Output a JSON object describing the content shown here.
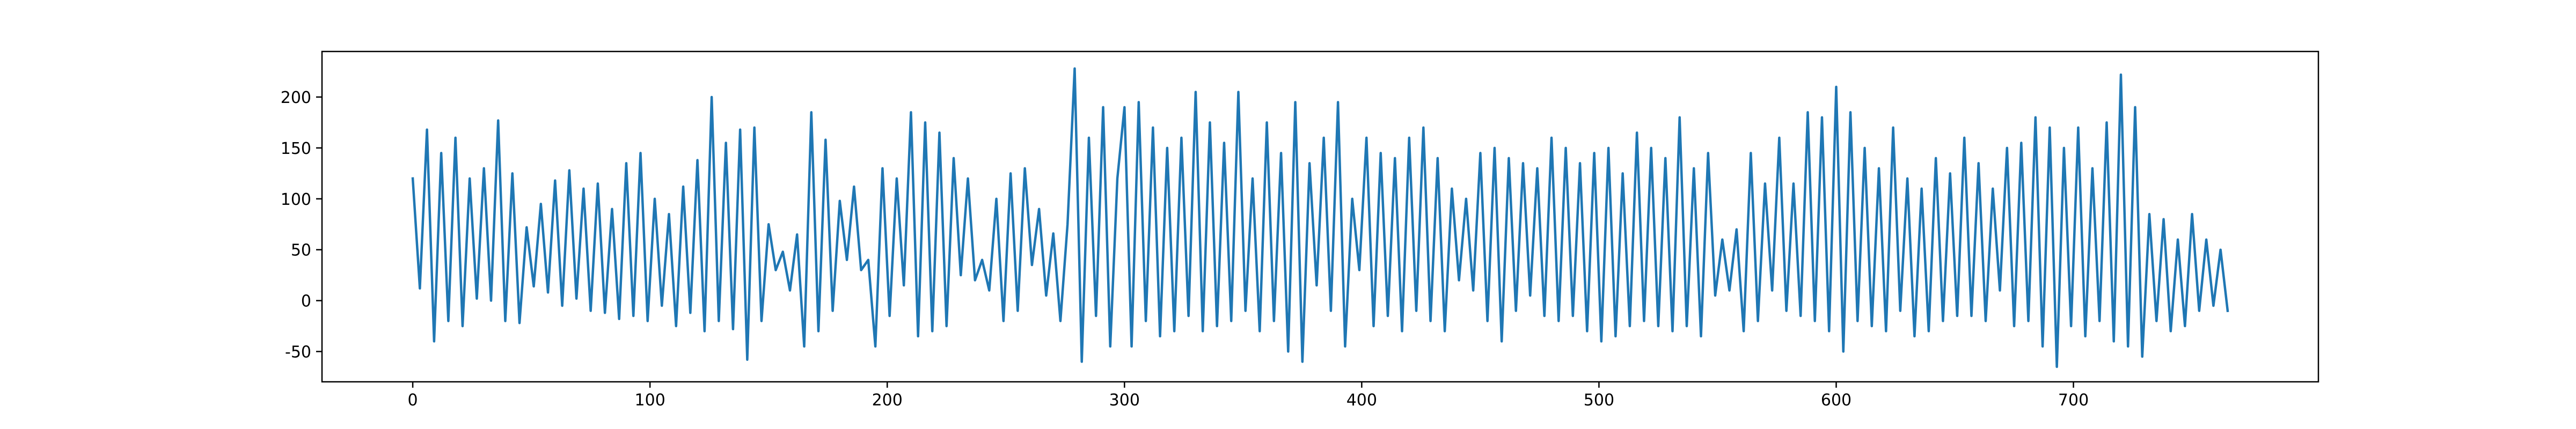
{
  "chart_data": {
    "type": "line",
    "color": "#1f77b4",
    "xlim": [
      -38.25,
      803.25
    ],
    "ylim": [
      -79.75,
      244.75
    ],
    "xticks": [
      0,
      100,
      200,
      300,
      400,
      500,
      600,
      700
    ],
    "yticks": [
      -50,
      0,
      50,
      100,
      150,
      200
    ],
    "x": [
      0,
      3,
      6,
      9,
      12,
      15,
      18,
      21,
      24,
      27,
      30,
      33,
      36,
      39,
      42,
      45,
      48,
      51,
      54,
      57,
      60,
      63,
      66,
      69,
      72,
      75,
      78,
      81,
      84,
      87,
      90,
      93,
      96,
      99,
      102,
      105,
      108,
      111,
      114,
      117,
      120,
      123,
      126,
      129,
      132,
      135,
      138,
      141,
      144,
      147,
      150,
      153,
      156,
      159,
      162,
      165,
      168,
      171,
      174,
      177,
      180,
      183,
      186,
      189,
      192,
      195,
      198,
      201,
      204,
      207,
      210,
      213,
      216,
      219,
      222,
      225,
      228,
      231,
      234,
      237,
      240,
      243,
      246,
      249,
      252,
      255,
      258,
      261,
      264,
      267,
      270,
      273,
      276,
      279,
      282,
      285,
      288,
      291,
      294,
      297,
      300,
      303,
      306,
      309,
      312,
      315,
      318,
      321,
      324,
      327,
      330,
      333,
      336,
      339,
      342,
      345,
      348,
      351,
      354,
      357,
      360,
      363,
      366,
      369,
      372,
      375,
      378,
      381,
      384,
      387,
      390,
      393,
      396,
      399,
      402,
      405,
      408,
      411,
      414,
      417,
      420,
      423,
      426,
      429,
      432,
      435,
      438,
      441,
      444,
      447,
      450,
      453,
      456,
      459,
      462,
      465,
      468,
      471,
      474,
      477,
      480,
      483,
      486,
      489,
      492,
      495,
      498,
      501,
      504,
      507,
      510,
      513,
      516,
      519,
      522,
      525,
      528,
      531,
      534,
      537,
      540,
      543,
      546,
      549,
      552,
      555,
      558,
      561,
      564,
      567,
      570,
      573,
      576,
      579,
      582,
      585,
      588,
      591,
      594,
      597,
      600,
      603,
      606,
      609,
      612,
      615,
      618,
      621,
      624,
      627,
      630,
      633,
      636,
      639,
      642,
      645,
      648,
      651,
      654,
      657,
      660,
      663,
      666,
      669,
      672,
      675,
      678,
      681,
      684,
      687,
      690,
      693,
      696,
      699,
      702,
      705,
      708,
      711,
      714,
      717,
      720,
      723,
      726,
      729,
      732,
      735,
      738,
      741,
      744,
      747,
      750,
      753,
      756,
      759,
      762,
      765
    ],
    "values": [
      120,
      12,
      168,
      -40,
      145,
      -20,
      160,
      -25,
      120,
      2,
      130,
      0,
      177,
      -20,
      125,
      -22,
      72,
      14,
      95,
      8,
      118,
      -5,
      128,
      2,
      110,
      -10,
      115,
      -12,
      90,
      -18,
      135,
      -15,
      145,
      -20,
      100,
      -5,
      85,
      -25,
      112,
      -12,
      138,
      -30,
      200,
      -20,
      155,
      -28,
      168,
      -58,
      170,
      -20,
      75,
      30,
      48,
      10,
      65,
      -45,
      185,
      -30,
      158,
      -10,
      98,
      40,
      112,
      30,
      40,
      -45,
      130,
      -15,
      120,
      15,
      185,
      -35,
      175,
      -30,
      165,
      -25,
      140,
      25,
      120,
      20,
      40,
      10,
      100,
      -20,
      125,
      -10,
      130,
      35,
      90,
      5,
      66,
      -20,
      75,
      228,
      -60,
      160,
      -15,
      190,
      -45,
      120,
      190,
      -45,
      195,
      -20,
      170,
      -35,
      150,
      -30,
      160,
      -15,
      205,
      -30,
      175,
      -25,
      155,
      -20,
      205,
      -10,
      120,
      -30,
      175,
      -20,
      145,
      -50,
      195,
      -60,
      135,
      15,
      160,
      -10,
      195,
      -45,
      100,
      30,
      160,
      -25,
      145,
      -15,
      140,
      -30,
      160,
      -10,
      170,
      -20,
      140,
      -30,
      110,
      20,
      100,
      10,
      145,
      -20,
      150,
      -40,
      140,
      -10,
      135,
      5,
      130,
      -15,
      160,
      -20,
      150,
      -15,
      135,
      -30,
      145,
      -40,
      150,
      -35,
      125,
      -25,
      165,
      -20,
      150,
      -25,
      140,
      -30,
      180,
      -25,
      130,
      -35,
      145,
      5,
      60,
      10,
      70,
      -30,
      145,
      -20,
      115,
      10,
      160,
      -10,
      115,
      -15,
      185,
      -20,
      180,
      -30,
      210,
      -50,
      185,
      -20,
      150,
      -25,
      130,
      -30,
      170,
      -10,
      120,
      -35,
      110,
      -30,
      140,
      -20,
      125,
      -15,
      160,
      -15,
      135,
      -20,
      110,
      10,
      150,
      -25,
      155,
      -20,
      180,
      -45,
      170,
      -65,
      150,
      -25,
      170,
      -35,
      130,
      -20,
      175,
      -40,
      222,
      -45,
      190,
      -55,
      85,
      -20,
      80,
      -30,
      60,
      -25,
      85,
      -10,
      60,
      -5,
      50,
      -10
    ]
  }
}
